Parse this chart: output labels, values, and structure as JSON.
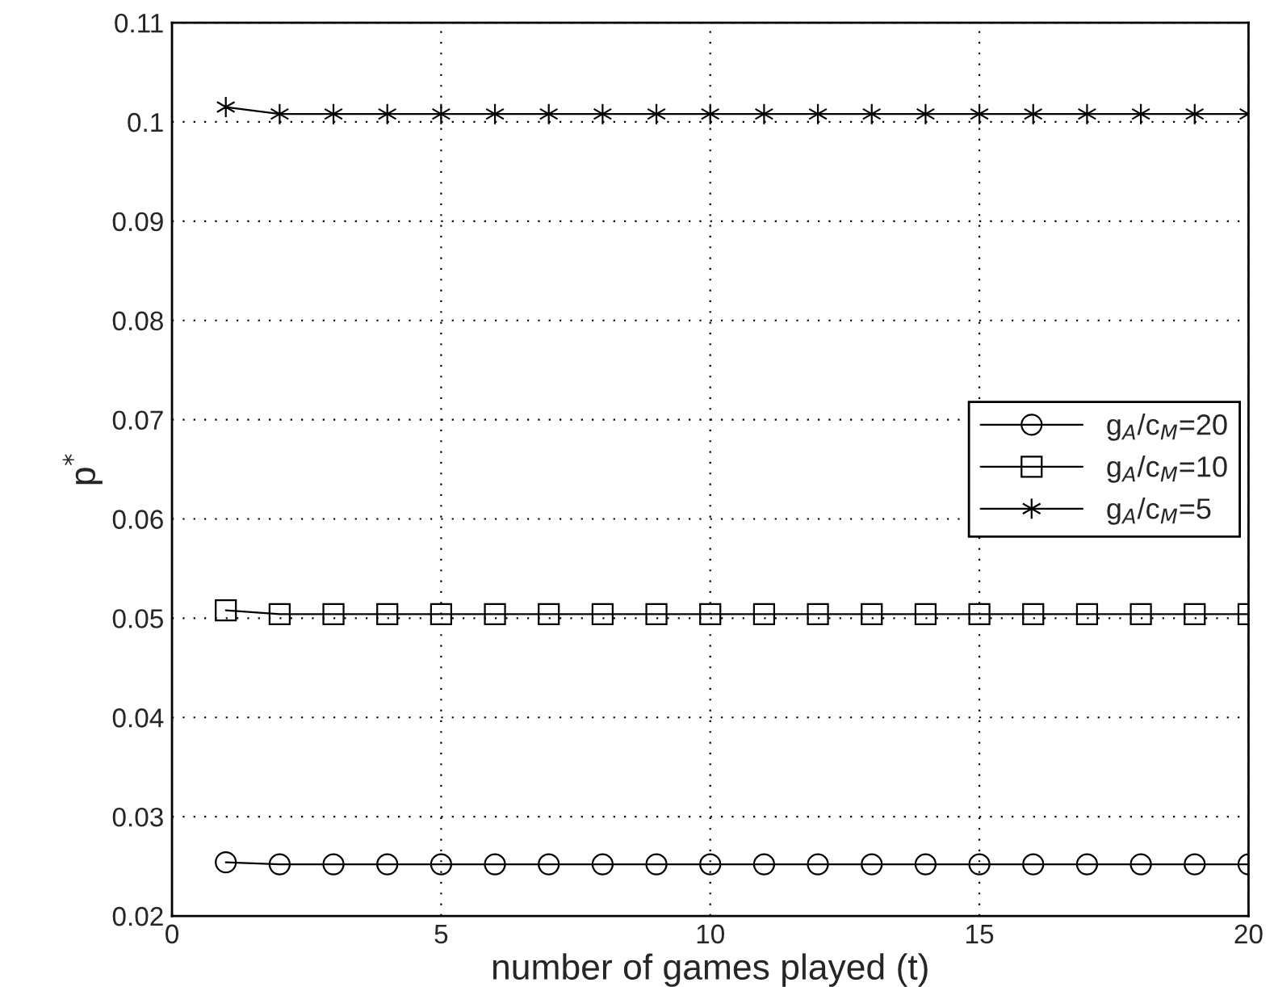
{
  "chart_data": {
    "type": "line",
    "xlabel": "number of games played (t)",
    "ylabel": "p$^{*}$",
    "x": [
      1,
      2,
      3,
      4,
      5,
      6,
      7,
      8,
      9,
      10,
      11,
      12,
      13,
      14,
      15,
      16,
      17,
      18,
      19,
      20
    ],
    "series": [
      {
        "name": "g$_{A}$/c$_{M}$=20",
        "color": "#000000",
        "marker": "circle",
        "values": [
          0.0254,
          0.0252,
          0.0252,
          0.0252,
          0.0252,
          0.0252,
          0.0252,
          0.0252,
          0.0252,
          0.0252,
          0.0252,
          0.0252,
          0.0252,
          0.0252,
          0.0252,
          0.0252,
          0.0252,
          0.0252,
          0.0252,
          0.0252
        ]
      },
      {
        "name": "g$_{A}$/c$_{M}$=10",
        "color": "#000000",
        "marker": "square",
        "values": [
          0.0508,
          0.0504,
          0.0504,
          0.0504,
          0.0504,
          0.0504,
          0.0504,
          0.0504,
          0.0504,
          0.0504,
          0.0504,
          0.0504,
          0.0504,
          0.0504,
          0.0504,
          0.0504,
          0.0504,
          0.0504,
          0.0504,
          0.0504
        ]
      },
      {
        "name": "g$_{A}$/c$_{M}$=5",
        "color": "#000000",
        "marker": "cross",
        "values": [
          0.1015,
          0.1008,
          0.1008,
          0.1008,
          0.1008,
          0.1008,
          0.1008,
          0.1008,
          0.1008,
          0.1008,
          0.1008,
          0.1008,
          0.1008,
          0.1008,
          0.1008,
          0.1008,
          0.1008,
          0.1008,
          0.1008,
          0.1008
        ]
      }
    ],
    "xlim": [
      0,
      20
    ],
    "xticks": [
      0,
      5,
      10,
      15,
      20
    ],
    "ylim": [
      0.02,
      0.11
    ],
    "yticks": [
      0.02,
      0.03,
      0.04,
      0.05,
      0.06,
      0.07,
      0.08,
      0.09,
      0.1,
      0.11
    ],
    "grid": true,
    "legend": "right",
    "line_style": "solid"
  }
}
